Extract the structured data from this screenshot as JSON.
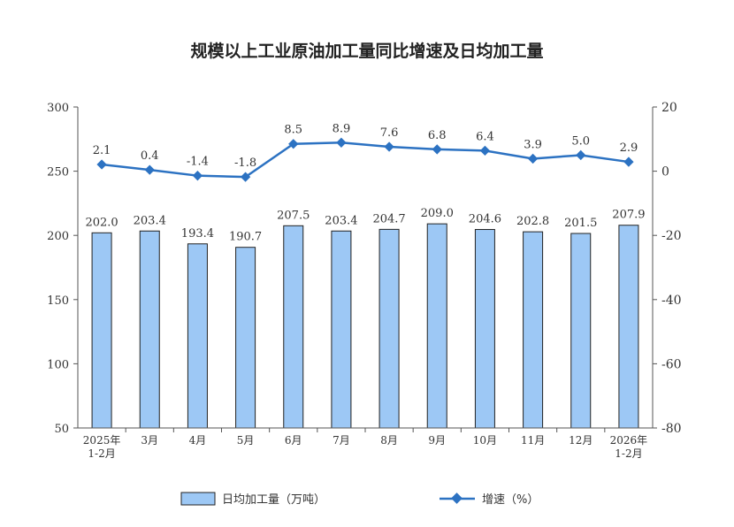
{
  "chart_data": {
    "type": "bar+line",
    "title": "规模以上工业原油加工量同比增速及日均加工量",
    "categories": [
      [
        "2025年",
        "1-2月"
      ],
      [
        "3月"
      ],
      [
        "4月"
      ],
      [
        "5月"
      ],
      [
        "6月"
      ],
      [
        "7月"
      ],
      [
        "8月"
      ],
      [
        "9月"
      ],
      [
        "10月"
      ],
      [
        "11月"
      ],
      [
        "12月"
      ],
      [
        "2026年",
        "1-2月"
      ]
    ],
    "left_axis": {
      "ylim": [
        50,
        300
      ],
      "ticks": [
        "50",
        "100",
        "150",
        "200",
        "250",
        "300"
      ]
    },
    "right_axis": {
      "ylim": [
        -80,
        20
      ],
      "ticks": [
        "-80",
        "-60",
        "-40",
        "-20",
        "0",
        "20"
      ]
    },
    "series": [
      {
        "name": "日均加工量（万吨）",
        "type": "bar",
        "axis": "left",
        "color": "#9dc8f5",
        "values": [
          202.0,
          203.4,
          193.4,
          190.7,
          207.5,
          203.4,
          204.7,
          209.0,
          204.6,
          202.8,
          201.5,
          207.9
        ],
        "labels": [
          "202.0",
          "203.4",
          "193.4",
          "190.7",
          "207.5",
          "203.4",
          "204.7",
          "209.0",
          "204.6",
          "202.8",
          "201.5",
          "207.9"
        ]
      },
      {
        "name": "增速（%）",
        "type": "line",
        "axis": "right",
        "color": "#2c72c2",
        "values": [
          2.1,
          0.4,
          -1.4,
          -1.8,
          8.5,
          8.9,
          7.6,
          6.8,
          6.4,
          3.9,
          5.0,
          2.9
        ],
        "labels": [
          "2.1",
          "0.4",
          "-1.4",
          "-1.8",
          "8.5",
          "8.9",
          "7.6",
          "6.8",
          "6.4",
          "3.9",
          "5.0",
          "2.9"
        ]
      }
    ],
    "legend_position": "bottom"
  }
}
